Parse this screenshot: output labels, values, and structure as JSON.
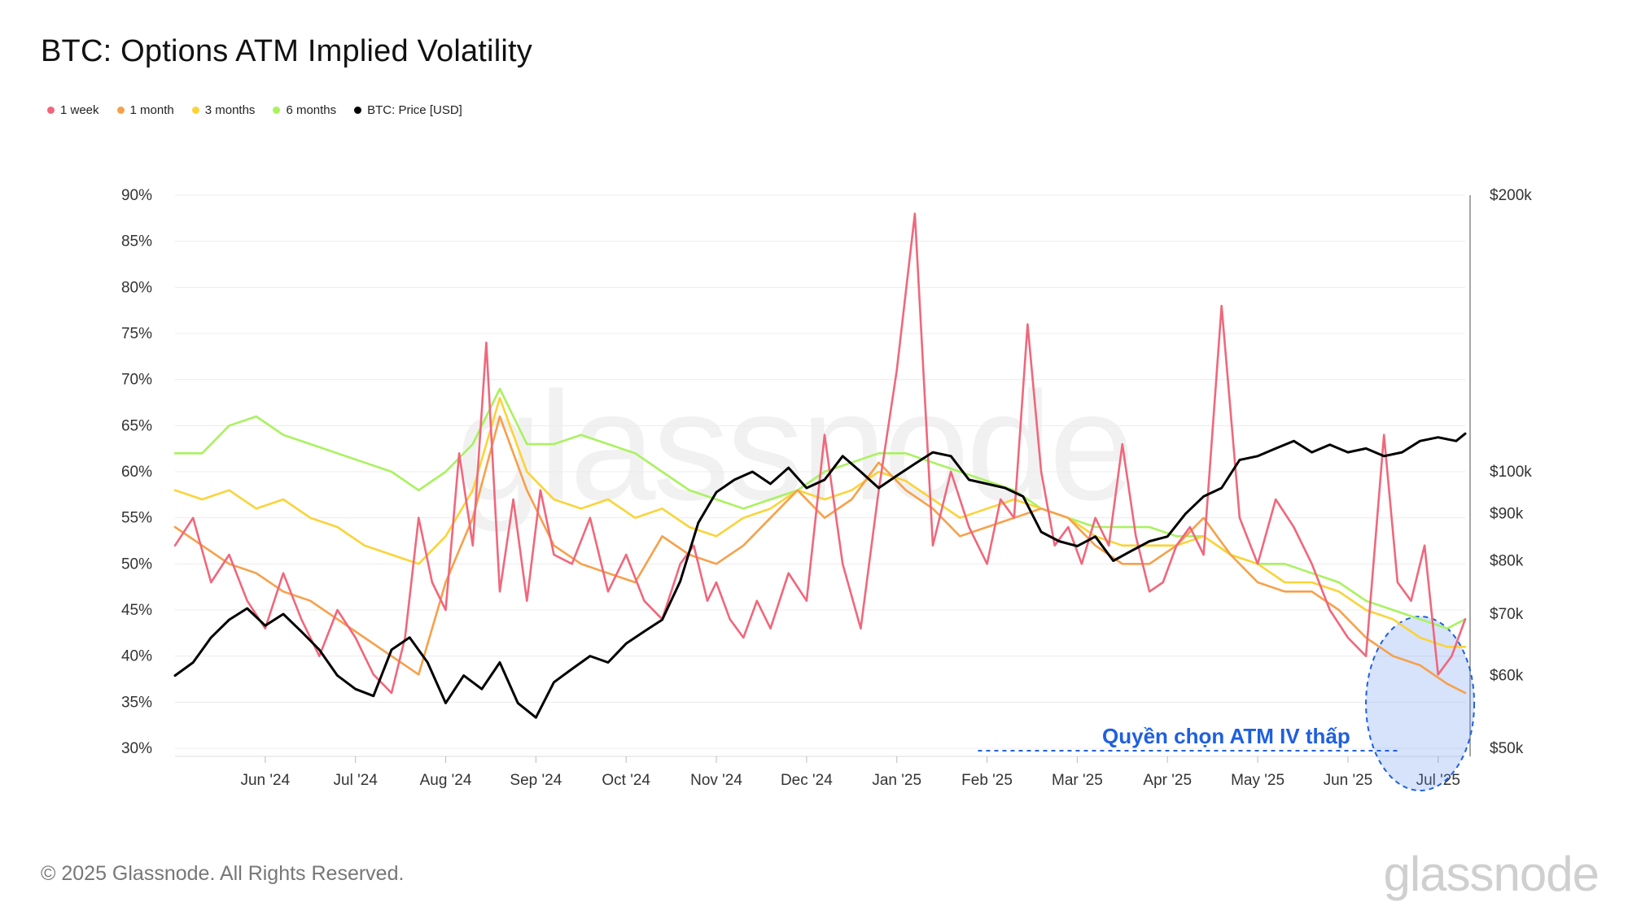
{
  "title": "BTC: Options ATM Implied Volatility",
  "legend": [
    {
      "label": "1 week",
      "color": "#f0677c"
    },
    {
      "label": "1 month",
      "color": "#f7a04a"
    },
    {
      "label": "3 months",
      "color": "#fbd338"
    },
    {
      "label": "6 months",
      "color": "#a9f25e"
    },
    {
      "label": "BTC: Price [USD]",
      "color": "#000000"
    }
  ],
  "annotation": "Quyền chọn ATM IV thấp",
  "footer": "© 2025 Glassnode. All Rights Reserved.",
  "brand": "glassnode",
  "watermark": "glassnode",
  "chart_data": {
    "type": "line",
    "title": "BTC: Options ATM Implied Volatility",
    "xlabel": "",
    "ylabel": "",
    "ylim": [
      30,
      90
    ],
    "y2lim": [
      50000,
      200000
    ],
    "y2scale": "log",
    "grid": true,
    "yticks": [
      "90%",
      "85%",
      "80%",
      "75%",
      "70%",
      "65%",
      "60%",
      "55%",
      "50%",
      "45%",
      "40%",
      "35%",
      "30%"
    ],
    "y2ticks": [
      {
        "label": "$200k",
        "value": 200000
      },
      {
        "label": "$100k",
        "value": 100000
      },
      {
        "label": "$90k",
        "value": 90000
      },
      {
        "label": "$80k",
        "value": 80000
      },
      {
        "label": "$70k",
        "value": 70000
      },
      {
        "label": "$60k",
        "value": 60000
      },
      {
        "label": "$50k",
        "value": 50000
      }
    ],
    "xticks": [
      "Jun '24",
      "Jul '24",
      "Aug '24",
      "Sep '24",
      "Oct '24",
      "Nov '24",
      "Dec '24",
      "Jan '25",
      "Feb '25",
      "Mar '25",
      "Apr '25",
      "May '25",
      "Jun '25",
      "Jul '25"
    ],
    "x_range_months": [
      0,
      14.3
    ],
    "series": [
      {
        "name": "1 week",
        "axis": "left",
        "color": "#f0677c",
        "x": [
          0,
          0.2,
          0.4,
          0.6,
          0.8,
          1.0,
          1.2,
          1.4,
          1.6,
          1.8,
          2.0,
          2.2,
          2.4,
          2.55,
          2.7,
          2.85,
          3.0,
          3.15,
          3.3,
          3.45,
          3.6,
          3.75,
          3.9,
          4.05,
          4.2,
          4.4,
          4.6,
          4.8,
          5.0,
          5.2,
          5.4,
          5.6,
          5.75,
          5.9,
          6.0,
          6.15,
          6.3,
          6.45,
          6.6,
          6.8,
          7.0,
          7.2,
          7.4,
          7.6,
          7.8,
          8.0,
          8.2,
          8.4,
          8.6,
          8.8,
          9.0,
          9.15,
          9.3,
          9.45,
          9.6,
          9.75,
          9.9,
          10.05,
          10.2,
          10.35,
          10.5,
          10.65,
          10.8,
          10.95,
          11.1,
          11.25,
          11.4,
          11.6,
          11.8,
          12.0,
          12.2,
          12.4,
          12.6,
          12.8,
          13.0,
          13.2,
          13.4,
          13.55,
          13.7,
          13.85,
          14.0,
          14.15,
          14.3
        ],
        "values": [
          52,
          55,
          48,
          51,
          46,
          43,
          49,
          44,
          40,
          45,
          42,
          38,
          36,
          42,
          55,
          48,
          45,
          62,
          52,
          74,
          47,
          57,
          46,
          58,
          51,
          50,
          55,
          47,
          51,
          46,
          44,
          50,
          52,
          46,
          48,
          44,
          42,
          46,
          43,
          49,
          46,
          64,
          50,
          43,
          58,
          71,
          88,
          52,
          60,
          54,
          50,
          57,
          55,
          76,
          60,
          52,
          54,
          50,
          55,
          52,
          63,
          53,
          47,
          48,
          52,
          54,
          51,
          78,
          55,
          50,
          57,
          54,
          50,
          45,
          42,
          40,
          64,
          48,
          46,
          52,
          38,
          40,
          44
        ]
      },
      {
        "name": "1 month",
        "axis": "left",
        "color": "#f7a04a",
        "x": [
          0,
          0.3,
          0.6,
          0.9,
          1.2,
          1.5,
          1.8,
          2.1,
          2.4,
          2.7,
          3.0,
          3.3,
          3.6,
          3.9,
          4.2,
          4.5,
          4.8,
          5.1,
          5.4,
          5.7,
          6.0,
          6.3,
          6.6,
          6.9,
          7.2,
          7.5,
          7.8,
          8.1,
          8.4,
          8.7,
          9.0,
          9.3,
          9.6,
          9.9,
          10.2,
          10.5,
          10.8,
          11.1,
          11.4,
          11.7,
          12.0,
          12.3,
          12.6,
          12.9,
          13.2,
          13.5,
          13.8,
          14.1,
          14.3
        ],
        "values": [
          54,
          52,
          50,
          49,
          47,
          46,
          44,
          42,
          40,
          38,
          48,
          55,
          66,
          58,
          52,
          50,
          49,
          48,
          53,
          51,
          50,
          52,
          55,
          58,
          55,
          57,
          61,
          58,
          56,
          53,
          54,
          55,
          56,
          55,
          52,
          50,
          50,
          52,
          55,
          51,
          48,
          47,
          47,
          45,
          42,
          40,
          39,
          37,
          36
        ]
      },
      {
        "name": "3 months",
        "axis": "left",
        "color": "#fbd338",
        "x": [
          0,
          0.3,
          0.6,
          0.9,
          1.2,
          1.5,
          1.8,
          2.1,
          2.4,
          2.7,
          3.0,
          3.3,
          3.6,
          3.9,
          4.2,
          4.5,
          4.8,
          5.1,
          5.4,
          5.7,
          6.0,
          6.3,
          6.6,
          6.9,
          7.2,
          7.5,
          7.8,
          8.1,
          8.4,
          8.7,
          9.0,
          9.3,
          9.6,
          9.9,
          10.2,
          10.5,
          10.8,
          11.1,
          11.4,
          11.7,
          12.0,
          12.3,
          12.6,
          12.9,
          13.2,
          13.5,
          13.8,
          14.1,
          14.3
        ],
        "values": [
          58,
          57,
          58,
          56,
          57,
          55,
          54,
          52,
          51,
          50,
          53,
          58,
          68,
          60,
          57,
          56,
          57,
          55,
          56,
          54,
          53,
          55,
          56,
          58,
          57,
          58,
          60,
          59,
          57,
          55,
          56,
          57,
          56,
          55,
          53,
          52,
          52,
          52,
          53,
          51,
          50,
          48,
          48,
          47,
          45,
          44,
          42,
          41,
          41
        ]
      },
      {
        "name": "6 months",
        "axis": "left",
        "color": "#a9f25e",
        "x": [
          0,
          0.3,
          0.6,
          0.9,
          1.2,
          1.5,
          1.8,
          2.1,
          2.4,
          2.7,
          3.0,
          3.3,
          3.6,
          3.9,
          4.2,
          4.5,
          4.8,
          5.1,
          5.4,
          5.7,
          6.0,
          6.3,
          6.6,
          6.9,
          7.2,
          7.5,
          7.8,
          8.1,
          8.4,
          8.7,
          9.0,
          9.3,
          9.6,
          9.9,
          10.2,
          10.5,
          10.8,
          11.1,
          11.4,
          11.7,
          12.0,
          12.3,
          12.6,
          12.9,
          13.2,
          13.5,
          13.8,
          14.1,
          14.3
        ],
        "values": [
          62,
          62,
          65,
          66,
          64,
          63,
          62,
          61,
          60,
          58,
          60,
          63,
          69,
          63,
          63,
          64,
          63,
          62,
          60,
          58,
          57,
          56,
          57,
          58,
          60,
          61,
          62,
          62,
          61,
          60,
          59,
          58,
          56,
          55,
          54,
          54,
          54,
          53,
          53,
          51,
          50,
          50,
          49,
          48,
          46,
          45,
          44,
          43,
          44
        ]
      },
      {
        "name": "BTC: Price [USD]",
        "axis": "right",
        "color": "#000000",
        "x": [
          0,
          0.2,
          0.4,
          0.6,
          0.8,
          1.0,
          1.2,
          1.4,
          1.6,
          1.8,
          2.0,
          2.2,
          2.4,
          2.6,
          2.8,
          3.0,
          3.2,
          3.4,
          3.6,
          3.8,
          4.0,
          4.2,
          4.4,
          4.6,
          4.8,
          5.0,
          5.2,
          5.4,
          5.6,
          5.8,
          6.0,
          6.2,
          6.4,
          6.6,
          6.8,
          7.0,
          7.2,
          7.4,
          7.6,
          7.8,
          8.0,
          8.2,
          8.4,
          8.6,
          8.8,
          9.0,
          9.2,
          9.4,
          9.6,
          9.8,
          10.0,
          10.2,
          10.4,
          10.6,
          10.8,
          11.0,
          11.2,
          11.4,
          11.6,
          11.8,
          12.0,
          12.2,
          12.4,
          12.6,
          12.8,
          13.0,
          13.2,
          13.4,
          13.6,
          13.8,
          14.0,
          14.2,
          14.3
        ],
        "values": [
          60000,
          62000,
          66000,
          69000,
          71000,
          68000,
          70000,
          67000,
          64000,
          60000,
          58000,
          57000,
          64000,
          66000,
          62000,
          56000,
          60000,
          58000,
          62000,
          56000,
          54000,
          59000,
          61000,
          63000,
          62000,
          65000,
          67000,
          69000,
          76000,
          88000,
          95000,
          98000,
          100000,
          97000,
          101000,
          96000,
          98000,
          104000,
          100000,
          96000,
          99000,
          102000,
          105000,
          104000,
          98000,
          97000,
          96000,
          94000,
          86000,
          84000,
          83000,
          85000,
          80000,
          82000,
          84000,
          85000,
          90000,
          94000,
          96000,
          103000,
          104000,
          106000,
          108000,
          105000,
          107000,
          105000,
          106000,
          104000,
          105000,
          108000,
          109000,
          108000,
          110000
        ]
      }
    ]
  }
}
